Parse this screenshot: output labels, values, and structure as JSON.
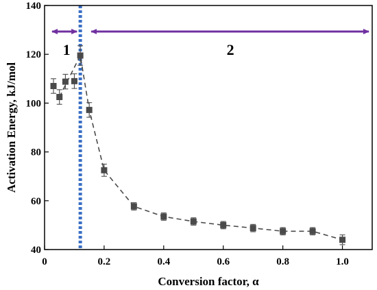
{
  "chart_data": {
    "type": "scatter",
    "xlabel": "Conversion factor, α",
    "ylabel": "Activation Energy, kJ/mol",
    "xlim": [
      0,
      1.1
    ],
    "ylim": [
      40,
      140
    ],
    "xticks": [
      "0",
      "0.2",
      "0.4",
      "0.6",
      "0.8",
      "1.0"
    ],
    "xtick_values": [
      0,
      0.2,
      0.4,
      0.6,
      0.8,
      1.0
    ],
    "yticks": [
      "40",
      "60",
      "80",
      "100",
      "120",
      "140"
    ],
    "ytick_values": [
      40,
      60,
      80,
      100,
      120,
      140
    ],
    "grid": false,
    "series": [
      {
        "line_style": "dashed",
        "marker": "square",
        "color": "#4a4a4a",
        "x": [
          0.05,
          0.12,
          0.15,
          0.2,
          0.3,
          0.4,
          0.5,
          0.6,
          0.7,
          0.8,
          0.9,
          1.0
        ],
        "y": [
          102.5,
          119.5,
          97.2,
          72.5,
          57.7,
          53.5,
          51.5,
          50.0,
          48.8,
          47.5,
          47.5,
          44.0
        ],
        "error": [
          3.0,
          4.0,
          3.0,
          2.5,
          1.5,
          1.5,
          1.5,
          1.5,
          1.5,
          1.5,
          1.5,
          2.0
        ]
      },
      {
        "marker": "square",
        "color": "#4a4a4a",
        "x": [
          0.03,
          0.07,
          0.1
        ],
        "y": [
          107.0,
          108.8,
          109.0
        ],
        "error": [
          3.0,
          3.0,
          3.0
        ]
      }
    ],
    "annotations": {
      "divider": {
        "x": 0.12,
        "color": "#3a6fc4",
        "style": "dotted"
      },
      "regions": [
        {
          "label": "1",
          "x_from": 0,
          "x_to": 0.12,
          "color": "#7030a0"
        },
        {
          "label": "2",
          "x_from": 0.12,
          "x_to": 1.1,
          "color": "#7030a0"
        }
      ]
    }
  }
}
